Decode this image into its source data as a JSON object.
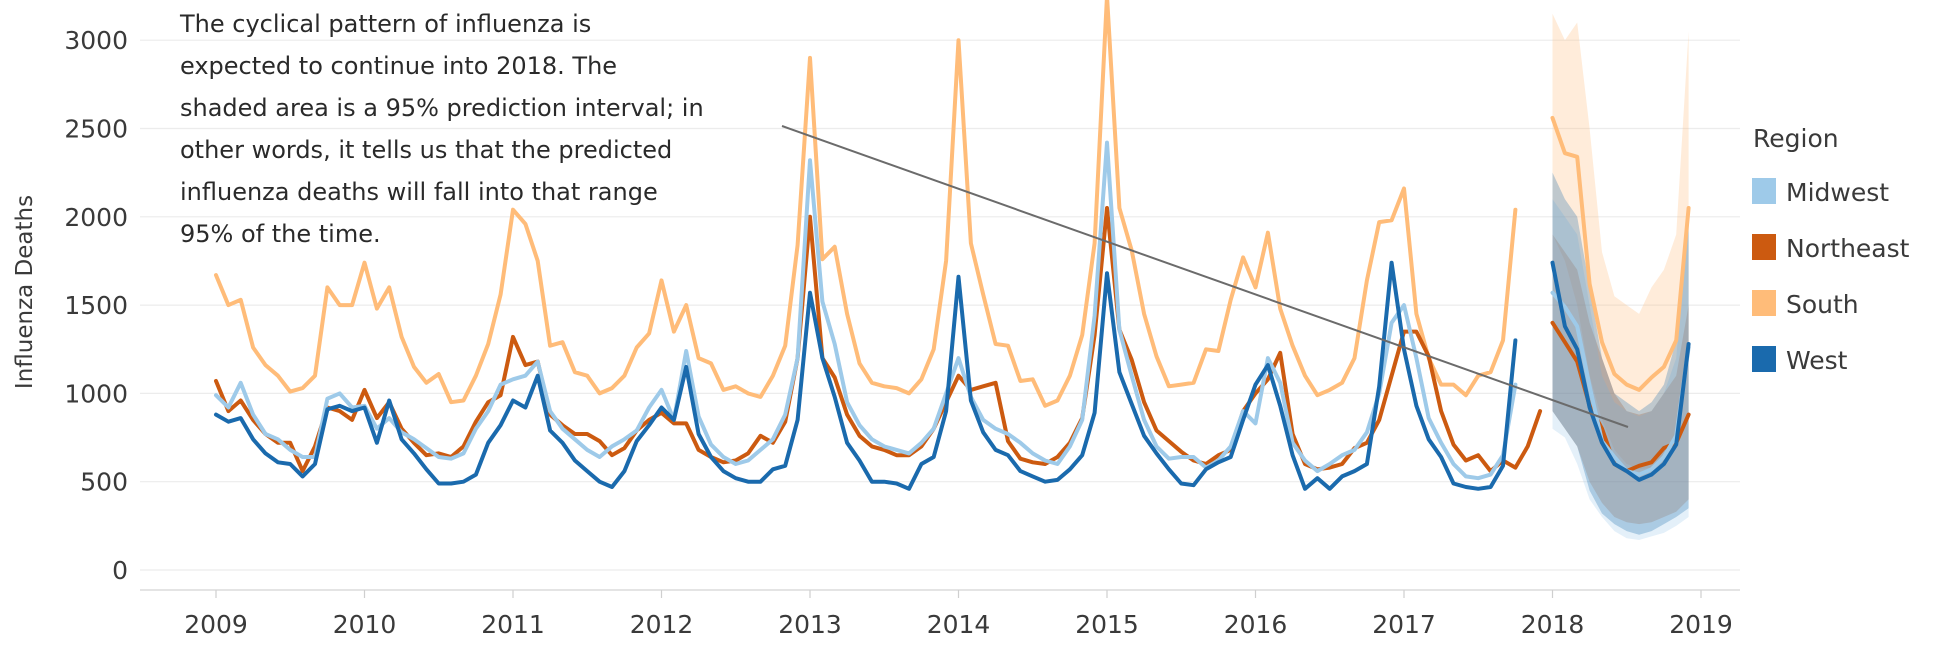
{
  "chart_data": {
    "type": "line",
    "ylabel": "Influenza Deaths",
    "yticks": [
      0,
      500,
      1000,
      1500,
      2000,
      2500,
      3000
    ],
    "xticks": [
      2009,
      2010,
      2011,
      2012,
      2013,
      2014,
      2015,
      2016,
      2017,
      2018,
      2019
    ],
    "ylim": [
      0,
      3300
    ],
    "xlim": [
      2008.45,
      2019.3
    ],
    "grid": "horizontal light",
    "annotation": {
      "lines": [
        "The cyclical pattern of influenza is",
        "expected to continue into 2018. The",
        "shaded area is a 95% prediction interval; in",
        "other words, it tells us that the predicted",
        "influenza deaths will fall into that range",
        "95% of the time."
      ],
      "arrow_from": [
        2013.0,
        2620
      ],
      "arrow_to": [
        2018.6,
        940
      ]
    },
    "legend": {
      "title": "Region",
      "placement": "right",
      "items": [
        {
          "name": "Midwest",
          "color": "#9ecae9"
        },
        {
          "name": "Northeast",
          "color": "#cc5a10"
        },
        {
          "name": "South",
          "color": "#ffbc79"
        },
        {
          "name": "West",
          "color": "#1a6aad"
        }
      ]
    },
    "series": [
      {
        "name": "South",
        "color": "#ffbc79",
        "start": 2009.0,
        "step": 0.0833333,
        "values": [
          1670,
          1500,
          1530,
          1260,
          1160,
          1100,
          1010,
          1030,
          1100,
          1600,
          1500,
          1500,
          1740,
          1480,
          1600,
          1320,
          1150,
          1060,
          1110,
          950,
          960,
          1100,
          1280,
          1560,
          2040,
          1960,
          1750,
          1270,
          1290,
          1120,
          1100,
          1000,
          1030,
          1100,
          1260,
          1340,
          1640,
          1350,
          1500,
          1200,
          1170,
          1020,
          1040,
          1000,
          980,
          1100,
          1270,
          1840,
          2900,
          1760,
          1830,
          1450,
          1170,
          1060,
          1040,
          1030,
          1000,
          1080,
          1250,
          1750,
          3000,
          1850,
          1560,
          1280,
          1270,
          1070,
          1080,
          930,
          960,
          1100,
          1330,
          1850,
          3250,
          2050,
          1810,
          1450,
          1210,
          1040,
          1050,
          1060,
          1250,
          1240,
          1530,
          1770,
          1600,
          1910,
          1480,
          1270,
          1100,
          990,
          1020,
          1060,
          1200,
          1640,
          1970,
          1980,
          2160,
          1450,
          1200,
          1050,
          1050,
          990,
          1100,
          1120,
          1300,
          2040
        ]
      },
      {
        "name": "Northeast",
        "color": "#cc5a10",
        "start": 2009.0,
        "step": 0.0833333,
        "values": [
          1070,
          900,
          960,
          850,
          770,
          720,
          720,
          560,
          700,
          920,
          900,
          850,
          1020,
          860,
          950,
          800,
          720,
          650,
          660,
          640,
          700,
          840,
          950,
          990,
          1320,
          1160,
          1180,
          880,
          820,
          770,
          770,
          730,
          650,
          690,
          790,
          850,
          890,
          830,
          830,
          680,
          640,
          610,
          620,
          660,
          760,
          720,
          840,
          1200,
          2000,
          1200,
          1090,
          880,
          760,
          700,
          680,
          650,
          650,
          700,
          800,
          950,
          1100,
          1020,
          1040,
          1060,
          730,
          630,
          610,
          600,
          640,
          720,
          860,
          1330,
          2050,
          1360,
          1190,
          950,
          790,
          730,
          670,
          620,
          600,
          650,
          680,
          900,
          1000,
          1080,
          1230,
          770,
          600,
          570,
          580,
          600,
          690,
          720,
          850,
          1100,
          1350,
          1350,
          1210,
          900,
          710,
          620,
          650,
          560,
          620,
          580,
          700,
          900
        ]
      },
      {
        "name": "Midwest",
        "color": "#9ecae9",
        "start": 2009.0,
        "step": 0.0833333,
        "values": [
          990,
          920,
          1060,
          880,
          770,
          740,
          680,
          640,
          640,
          970,
          1000,
          920,
          930,
          800,
          860,
          780,
          740,
          690,
          640,
          630,
          660,
          800,
          900,
          1050,
          1080,
          1100,
          1180,
          900,
          800,
          740,
          680,
          640,
          700,
          740,
          790,
          920,
          1020,
          850,
          1240,
          870,
          710,
          640,
          600,
          620,
          680,
          740,
          880,
          1200,
          2320,
          1520,
          1280,
          950,
          820,
          740,
          700,
          680,
          660,
          720,
          800,
          1000,
          1200,
          980,
          850,
          800,
          770,
          720,
          660,
          620,
          600,
          700,
          850,
          1440,
          2420,
          1360,
          1100,
          850,
          700,
          630,
          640,
          640,
          580,
          620,
          700,
          900,
          830,
          1200,
          1060,
          720,
          620,
          560,
          600,
          650,
          680,
          780,
          1000,
          1400,
          1500,
          1200,
          860,
          720,
          600,
          530,
          520,
          540,
          650,
          1050
        ]
      },
      {
        "name": "West",
        "color": "#1a6aad",
        "start": 2009.0,
        "step": 0.0833333,
        "values": [
          880,
          840,
          860,
          740,
          660,
          610,
          600,
          530,
          600,
          910,
          930,
          900,
          920,
          720,
          960,
          740,
          660,
          570,
          490,
          490,
          500,
          540,
          720,
          820,
          960,
          920,
          1100,
          790,
          720,
          620,
          560,
          500,
          470,
          560,
          730,
          820,
          920,
          850,
          1150,
          770,
          640,
          560,
          520,
          500,
          500,
          570,
          590,
          850,
          1570,
          1200,
          980,
          720,
          620,
          500,
          500,
          490,
          460,
          600,
          640,
          900,
          1660,
          960,
          780,
          680,
          650,
          560,
          530,
          500,
          510,
          570,
          650,
          890,
          1680,
          1120,
          940,
          760,
          660,
          570,
          490,
          480,
          570,
          610,
          640,
          850,
          1050,
          1160,
          930,
          650,
          460,
          520,
          460,
          530,
          560,
          600,
          1040,
          1740,
          1250,
          930,
          740,
          640,
          490,
          470,
          460,
          470,
          590,
          1300
        ]
      }
    ],
    "forecast": {
      "start": 2018.0,
      "step": 0.0833333,
      "series": [
        {
          "name": "South",
          "color": "#ffbc79",
          "values": [
            2560,
            2360,
            2340,
            1620,
            1290,
            1110,
            1050,
            1020,
            1090,
            1150,
            1300,
            2050
          ],
          "lower": [
            1900,
            1750,
            1500,
            1100,
            850,
            680,
            600,
            570,
            580,
            620,
            700,
            1200
          ],
          "upper": [
            3150,
            3000,
            3100,
            2500,
            1800,
            1550,
            1500,
            1450,
            1600,
            1700,
            1900,
            3050
          ]
        },
        {
          "name": "Northeast",
          "color": "#cc5a10",
          "values": [
            1400,
            1290,
            1180,
            930,
            800,
            600,
            560,
            590,
            610,
            690,
            720,
            880
          ],
          "lower": [
            900,
            800,
            700,
            500,
            380,
            300,
            270,
            260,
            270,
            300,
            330,
            400
          ],
          "upper": [
            1900,
            1800,
            1700,
            1400,
            1200,
            1000,
            900,
            880,
            900,
            1000,
            1100,
            1500
          ]
        },
        {
          "name": "Midwest",
          "color": "#9ecae9",
          "values": [
            1570,
            1490,
            1380,
            1040,
            730,
            640,
            560,
            540,
            570,
            640,
            760,
            1260
          ],
          "lower": [
            800,
            750,
            600,
            400,
            300,
            220,
            180,
            170,
            190,
            210,
            250,
            300
          ],
          "upper": [
            2100,
            2000,
            1900,
            1500,
            1100,
            950,
            900,
            870,
            900,
            1000,
            1200,
            2000
          ]
        },
        {
          "name": "West",
          "color": "#1a6aad",
          "values": [
            1740,
            1380,
            1250,
            920,
            720,
            600,
            560,
            510,
            540,
            600,
            710,
            1280
          ],
          "lower": [
            900,
            800,
            700,
            450,
            320,
            260,
            220,
            200,
            220,
            260,
            300,
            350
          ],
          "upper": [
            2250,
            2100,
            2000,
            1600,
            1200,
            1000,
            950,
            900,
            950,
            1050,
            1300,
            2000
          ]
        }
      ]
    }
  }
}
